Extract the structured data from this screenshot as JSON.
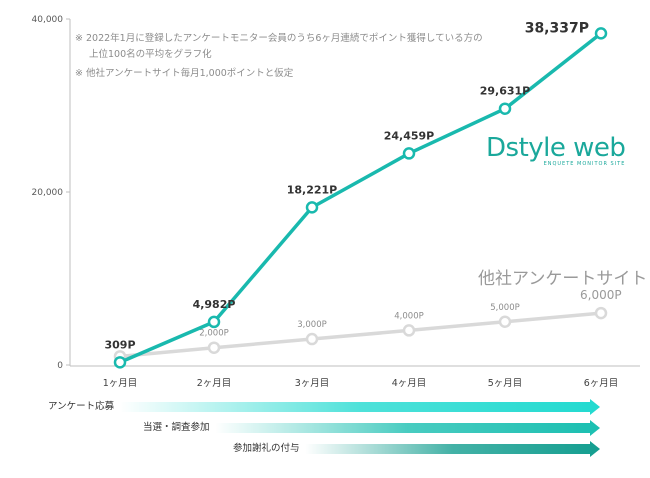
{
  "notes": [
    "※ 2022年1月に登録したアンケートモニター会員のうち6ヶ月連続でポイント獲得している方の",
    "上位100名の平均をグラフ化",
    "※ 他社アンケートサイト毎月1,000ポイントと仮定"
  ],
  "logo": {
    "name": "Dstyle web",
    "sub": "ENQUETE MONITOR SITE"
  },
  "other_site_label": "他社アンケートサイト",
  "other_site_value_label": "6,000P",
  "phases": [
    {
      "label": "アンケート応募"
    },
    {
      "label": "当選・調査参加"
    },
    {
      "label": "参加謝礼の付与"
    }
  ],
  "colors": {
    "dstyle": "#19b9ae",
    "other": "#d9d9d9",
    "phase1": "#22dad0",
    "phase2": "#1bbfb1",
    "phase3": "#149e90"
  },
  "chart_data": {
    "type": "line",
    "categories": [
      "1ヶ月目",
      "2ヶ月目",
      "3ヶ月目",
      "4ヶ月目",
      "5ヶ月目",
      "6ヶ月目"
    ],
    "ylim": [
      0,
      40000
    ],
    "yticks": [
      "0",
      "20,000",
      "40,000"
    ],
    "grid": false,
    "series": [
      {
        "name": "Dstyle web",
        "values": [
          309,
          4982,
          18221,
          24459,
          29631,
          38337
        ],
        "labels": [
          "309P",
          "4,982P",
          "18,221P",
          "24,459P",
          "29,631P",
          "38,337P"
        ]
      },
      {
        "name": "他社アンケートサイト",
        "values": [
          1000,
          2000,
          3000,
          4000,
          5000,
          6000
        ],
        "labels": [
          "",
          "2,000P",
          "3,000P",
          "4,000P",
          "5,000P",
          ""
        ]
      }
    ]
  }
}
